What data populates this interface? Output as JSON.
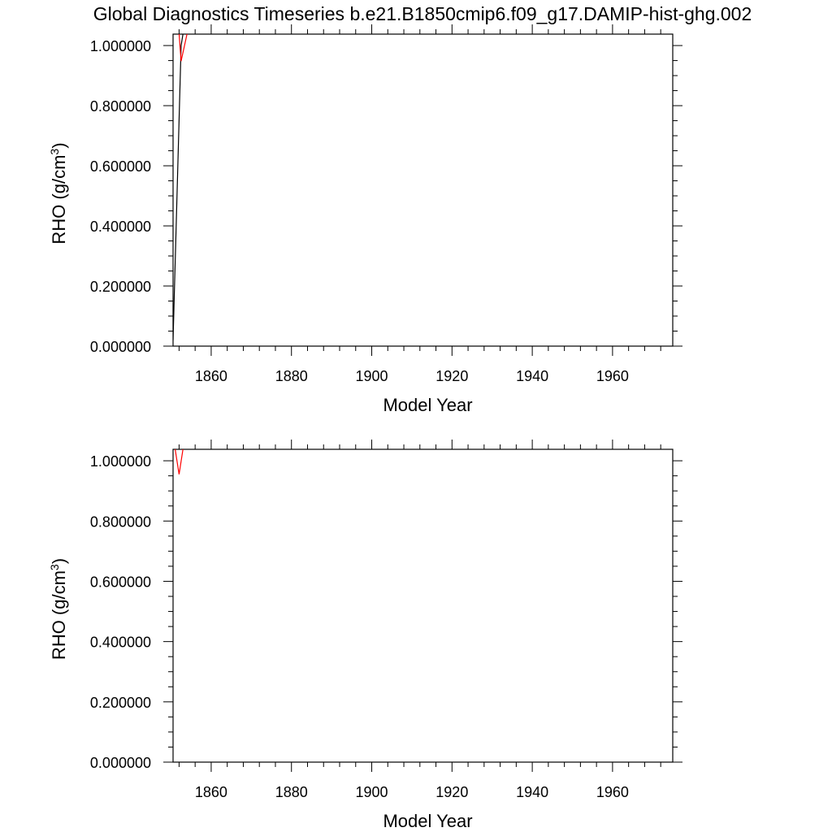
{
  "title": "Global Diagnostics Timeseries b.e21.B1850cmip6.f09_g17.DAMIP-hist-ghg.002",
  "colors": {
    "series_black": "#000000",
    "series_red": "#ff0000",
    "axis": "#000000"
  },
  "chart_data": [
    {
      "type": "line",
      "title": "Global Diagnostics Timeseries b.e21.B1850cmip6.f09_g17.DAMIP-hist-ghg.002",
      "xlabel": "Model Year",
      "ylabel": "RHO (g/cm",
      "ylabel_sup": "3",
      "ylabel_close": ")",
      "xlim": [
        1850.5,
        1975
      ],
      "ylim": [
        0,
        1.038
      ],
      "xticks": [
        1860,
        1880,
        1900,
        1920,
        1940,
        1960
      ],
      "xtick_labels": [
        "1860",
        "1880",
        "1900",
        "1920",
        "1940",
        "1960"
      ],
      "yticks": [
        0,
        0.2,
        0.4,
        0.6,
        0.8,
        1.0
      ],
      "ytick_labels": [
        "0.000000",
        "0.200000",
        "0.400000",
        "0.600000",
        "0.800000",
        "1.000000"
      ],
      "grid": false,
      "series": [
        {
          "color": "#000000",
          "x": [
            1850.5,
            1852.5,
            1853.0
          ],
          "y": [
            0.02,
            1.0,
            1.04
          ]
        },
        {
          "color": "#ff0000",
          "x": [
            1852.0,
            1852.5,
            1854.0
          ],
          "y": [
            1.04,
            0.948,
            1.04
          ]
        }
      ]
    },
    {
      "type": "line",
      "xlabel": "Model Year",
      "ylabel": "RHO (g/cm",
      "ylabel_sup": "3",
      "ylabel_close": ")",
      "xlim": [
        1850.5,
        1975
      ],
      "ylim": [
        0,
        1.038
      ],
      "xticks": [
        1860,
        1880,
        1900,
        1920,
        1940,
        1960
      ],
      "xtick_labels": [
        "1860",
        "1880",
        "1900",
        "1920",
        "1940",
        "1960"
      ],
      "yticks": [
        0,
        0.2,
        0.4,
        0.6,
        0.8,
        1.0
      ],
      "ytick_labels": [
        "0.000000",
        "0.200000",
        "0.400000",
        "0.600000",
        "0.800000",
        "1.000000"
      ],
      "grid": false,
      "series": [
        {
          "color": "#ff0000",
          "x": [
            1851.0,
            1852.0,
            1853.0
          ],
          "y": [
            1.04,
            0.955,
            1.04
          ]
        }
      ]
    }
  ]
}
